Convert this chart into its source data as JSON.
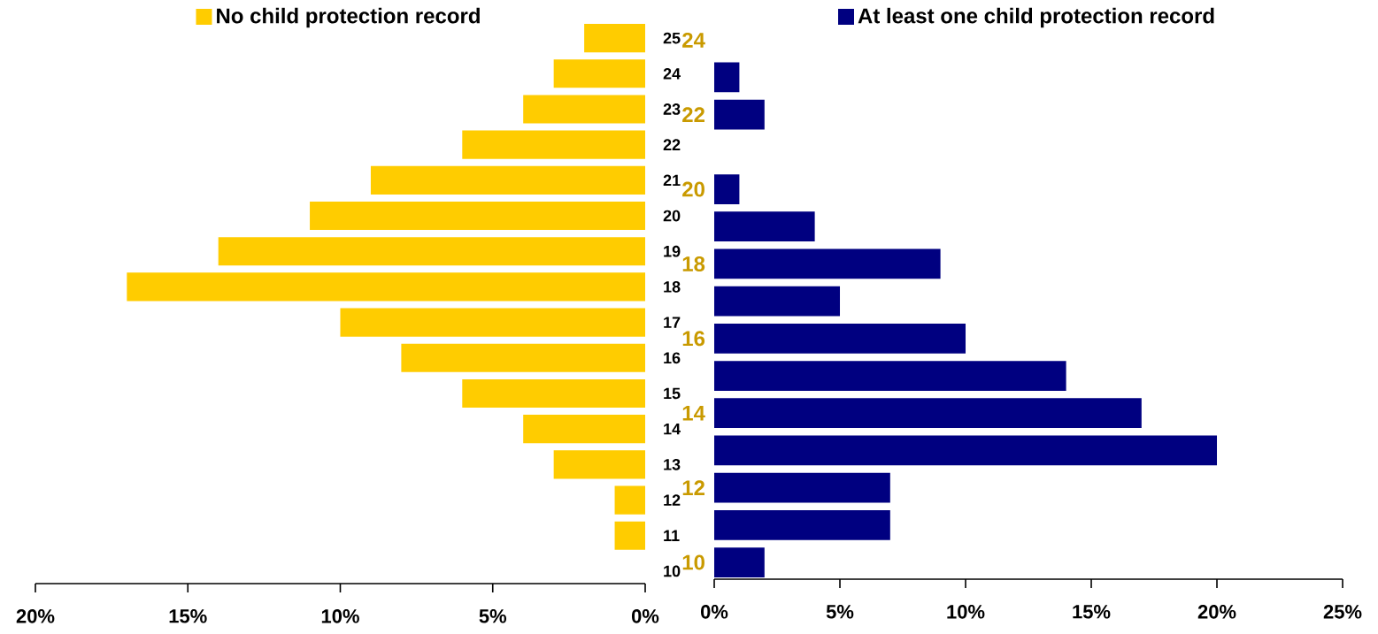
{
  "chart_data": [
    {
      "type": "bar",
      "orientation": "horizontal",
      "categories": [
        "25",
        "24",
        "23",
        "22",
        "21",
        "20",
        "19",
        "18",
        "17",
        "16",
        "15",
        "14",
        "13",
        "12",
        "11",
        "10"
      ],
      "series": [
        {
          "name": "No child protection record",
          "color": "#ffcc00",
          "values": [
            2,
            3,
            4,
            6,
            9,
            11,
            14,
            17,
            10,
            8,
            6,
            4,
            3,
            1,
            1,
            null
          ]
        }
      ],
      "xlim": [
        20,
        0
      ],
      "xticks": [
        {
          "value": 20,
          "label": "20%"
        },
        {
          "value": 15,
          "label": "15%"
        },
        {
          "value": 10,
          "label": "10%"
        },
        {
          "value": 5,
          "label": "5%"
        },
        {
          "value": 0,
          "label": "0%"
        }
      ],
      "legend": "top",
      "grid": false
    },
    {
      "type": "bar",
      "orientation": "horizontal",
      "categories": [
        "24",
        null,
        "22",
        null,
        "20",
        null,
        "18",
        null,
        "16",
        null,
        "14",
        null,
        "12",
        null,
        "10"
      ],
      "series": [
        {
          "name": "At least one child protection record",
          "color": "#000080",
          "values": [
            null,
            1,
            2,
            null,
            1,
            4,
            9,
            5,
            10,
            14,
            17,
            20,
            7,
            7,
            2
          ]
        }
      ],
      "xlim": [
        0,
        25
      ],
      "xticks": [
        {
          "value": 0,
          "label": "0%"
        },
        {
          "value": 5,
          "label": "5%"
        },
        {
          "value": 10,
          "label": "10%"
        },
        {
          "value": 15,
          "label": "15%"
        },
        {
          "value": 20,
          "label": "20%"
        },
        {
          "value": 25,
          "label": "25%"
        }
      ],
      "legend": "top",
      "grid": false
    }
  ]
}
